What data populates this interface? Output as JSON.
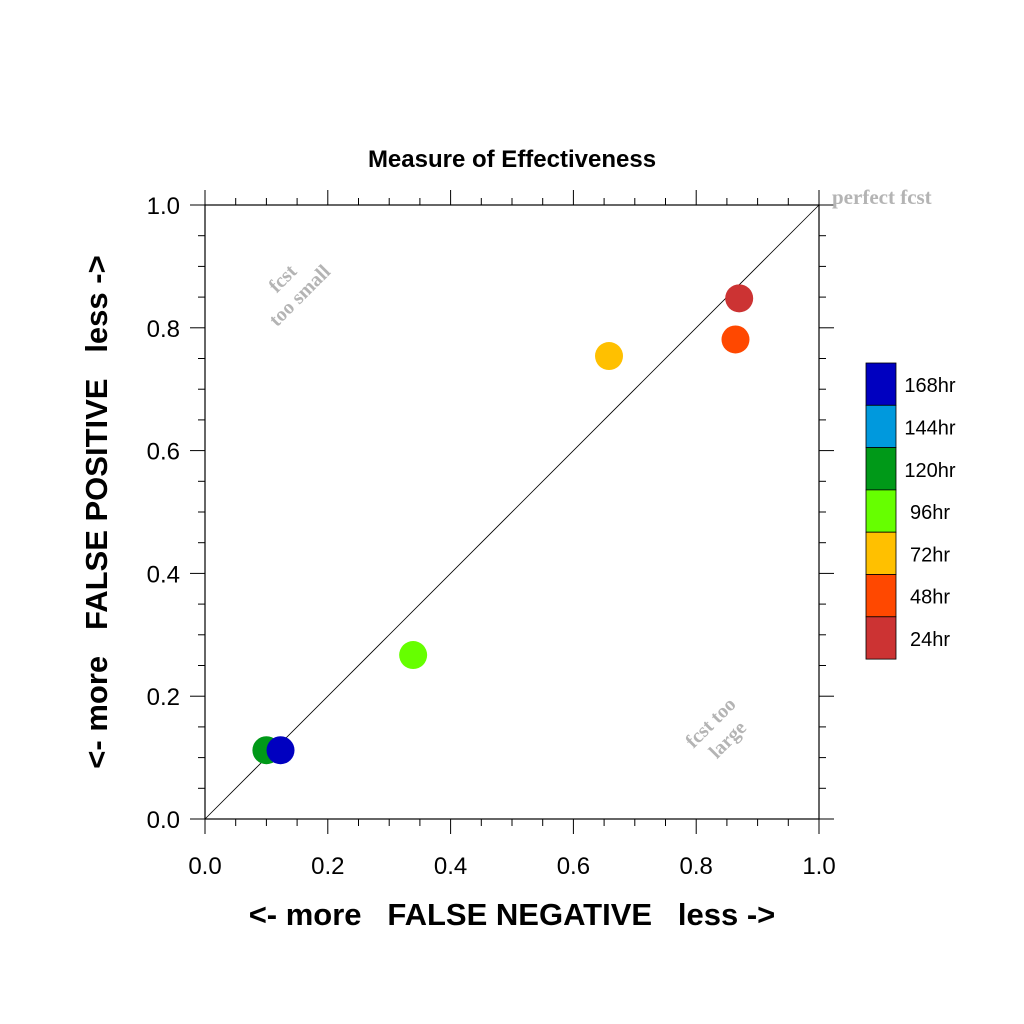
{
  "chart_data": {
    "type": "scatter",
    "title": "Measure of Effectiveness",
    "xlabel": "<- more   FALSE NEGATIVE   less ->",
    "ylabel": "<- more   FALSE POSITIVE   less ->",
    "xlim": [
      0.0,
      1.0
    ],
    "ylim": [
      0.0,
      1.0
    ],
    "xticks": [
      "0.0",
      "0.2",
      "0.4",
      "0.6",
      "0.8",
      "1.0"
    ],
    "yticks": [
      "0.0",
      "0.2",
      "0.4",
      "0.6",
      "0.8",
      "1.0"
    ],
    "xtick_values": [
      0.0,
      0.2,
      0.4,
      0.6,
      0.8,
      1.0
    ],
    "ytick_values": [
      0.0,
      0.2,
      0.4,
      0.6,
      0.8,
      1.0
    ],
    "grid": false,
    "diagonal_line": true,
    "annotations": {
      "perfect": "perfect fcst",
      "too_small_1": "fcst",
      "too_small_2": "too small",
      "too_large_1": "fcst too",
      "too_large_2": "large"
    },
    "annotation_color": "#b4b4b4",
    "legend": {
      "placement": "right",
      "entries": [
        {
          "label": "168hr",
          "color": "#0000c0"
        },
        {
          "label": "144hr",
          "color": "#0099dd"
        },
        {
          "label": "120hr",
          "color": "#009918"
        },
        {
          "label": "96hr",
          "color": "#66ff00"
        },
        {
          "label": "72hr",
          "color": "#ffc000"
        },
        {
          "label": "48hr",
          "color": "#ff4800"
        },
        {
          "label": "24hr",
          "color": "#cc3333"
        }
      ]
    },
    "points": [
      {
        "label": "24hr",
        "x": 0.87,
        "y": 0.848,
        "color": "#cc3333"
      },
      {
        "label": "48hr",
        "x": 0.864,
        "y": 0.781,
        "color": "#ff4800"
      },
      {
        "label": "72hr",
        "x": 0.658,
        "y": 0.754,
        "color": "#ffc000"
      },
      {
        "label": "96hr",
        "x": 0.339,
        "y": 0.267,
        "color": "#66ff00"
      },
      {
        "label": "120hr",
        "x": 0.1,
        "y": 0.112,
        "color": "#009918"
      },
      {
        "label": "168hr",
        "x": 0.123,
        "y": 0.112,
        "color": "#0000c0"
      }
    ]
  }
}
